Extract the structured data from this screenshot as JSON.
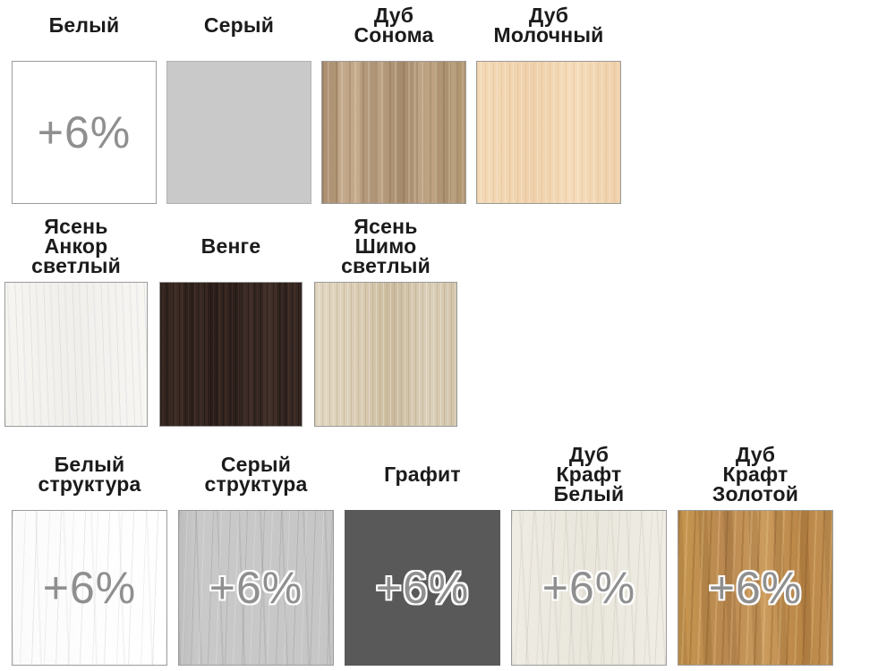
{
  "board": {
    "description": "furniture finish color options",
    "surcharge_badge": "+6%",
    "label_text_color": "#1b1b1b",
    "surcharge_text_color": "#8f8f8f",
    "surcharge_outline_color": "#ffffff"
  },
  "rows": [
    {
      "swatches": [
        {
          "id": "belyy",
          "label": "Белый",
          "surcharge": "+6%",
          "outlined": false,
          "texture": "belyy",
          "base_color": "#ffffff"
        },
        {
          "id": "seryy",
          "label": "Серый",
          "surcharge": null,
          "outlined": false,
          "texture": "seryy",
          "base_color": "#c9c9c9"
        },
        {
          "id": "dub-sonoma",
          "label": "Дуб\nСонома",
          "surcharge": null,
          "outlined": false,
          "texture": "dub-sonoma",
          "base_color": "#b69a7b"
        },
        {
          "id": "dub-molochnyy",
          "label": "Дуб\nМолочный",
          "surcharge": null,
          "outlined": false,
          "texture": "dub-molochnyy",
          "base_color": "#f2d7b3"
        }
      ]
    },
    {
      "swatches": [
        {
          "id": "yasen-ankor-svetlyy",
          "label": "Ясень\nАнкор\nсветлый",
          "surcharge": null,
          "outlined": false,
          "texture": "yasen-ankor",
          "base_color": "#f5f3ef"
        },
        {
          "id": "venge",
          "label": "Венге",
          "surcharge": null,
          "outlined": false,
          "texture": "venge",
          "base_color": "#3a2a24"
        },
        {
          "id": "yasen-shimo-svetlyy",
          "label": "Ясень\nШимо\nсветлый",
          "surcharge": null,
          "outlined": false,
          "texture": "yasen-shimo",
          "base_color": "#d7c9ae"
        }
      ]
    },
    {
      "swatches": [
        {
          "id": "belyy-struktura",
          "label": "Белый\nструктура",
          "surcharge": "+6%",
          "outlined": false,
          "texture": "belyy-struktura",
          "base_color": "#fbfbfb"
        },
        {
          "id": "seryy-struktura",
          "label": "Серый\nструктура",
          "surcharge": "+6%",
          "outlined": true,
          "texture": "seryy-struktura",
          "base_color": "#c6c6c6"
        },
        {
          "id": "grafit",
          "label": "Графит",
          "surcharge": "+6%",
          "outlined": true,
          "texture": "grafit",
          "base_color": "#595959"
        },
        {
          "id": "dub-kraft-belyy",
          "label": "Дуб\nКрафт\nБелый",
          "surcharge": "+6%",
          "outlined": true,
          "texture": "dub-kraft-belyy",
          "base_color": "#ece9e0"
        },
        {
          "id": "dub-kraft-zolotoy",
          "label": "Дуб\nКрафт\nЗолотой",
          "surcharge": "+6%",
          "outlined": true,
          "texture": "dub-kraft-zolotoy",
          "base_color": "#c2914f"
        }
      ]
    }
  ]
}
